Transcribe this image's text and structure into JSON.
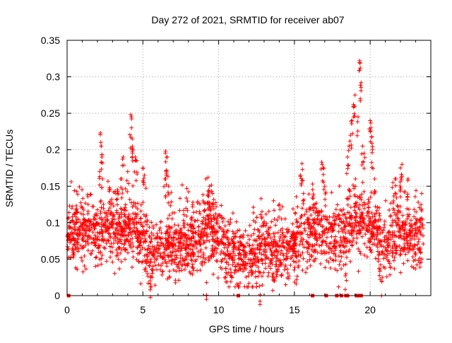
{
  "chart_data": {
    "type": "scatter",
    "title": "Day 272 of 2021, SRMTID for receiver ab07",
    "xlabel": "GPS time / hours",
    "ylabel": "SRMTID / TECUs",
    "xlim": [
      0,
      24
    ],
    "ylim": [
      0,
      0.35
    ],
    "grid": true,
    "x_ticks": [
      0,
      5,
      10,
      15,
      20
    ],
    "x_tick_labels": [
      "0",
      "5",
      "10",
      "15",
      "20"
    ],
    "y_ticks": [
      0,
      0.05,
      0.1,
      0.15,
      0.2,
      0.25,
      0.3,
      0.35
    ],
    "y_tick_labels": [
      "0",
      "0.05",
      "0.1",
      "0.15",
      "0.2",
      "0.25",
      "0.3",
      "0.35"
    ],
    "marker": "plus",
    "series": [
      {
        "name": "SRMTID",
        "color": "#ff0000",
        "trend": [
          [
            0.0,
            0.08
          ],
          [
            0.5,
            0.085
          ],
          [
            1.0,
            0.09
          ],
          [
            1.5,
            0.085
          ],
          [
            2.0,
            0.08
          ],
          [
            2.5,
            0.095
          ],
          [
            3.0,
            0.09
          ],
          [
            3.5,
            0.085
          ],
          [
            4.0,
            0.1
          ],
          [
            4.5,
            0.09
          ],
          [
            5.0,
            0.075
          ],
          [
            5.5,
            0.06
          ],
          [
            6.0,
            0.06
          ],
          [
            6.5,
            0.07
          ],
          [
            7.0,
            0.06
          ],
          [
            7.5,
            0.065
          ],
          [
            8.0,
            0.065
          ],
          [
            8.5,
            0.07
          ],
          [
            9.0,
            0.085
          ],
          [
            9.5,
            0.095
          ],
          [
            10.0,
            0.07
          ],
          [
            10.5,
            0.06
          ],
          [
            11.0,
            0.055
          ],
          [
            11.5,
            0.055
          ],
          [
            12.0,
            0.05
          ],
          [
            12.5,
            0.055
          ],
          [
            13.0,
            0.06
          ],
          [
            13.5,
            0.065
          ],
          [
            14.0,
            0.06
          ],
          [
            14.5,
            0.06
          ],
          [
            15.0,
            0.07
          ],
          [
            15.5,
            0.08
          ],
          [
            16.0,
            0.085
          ],
          [
            16.5,
            0.085
          ],
          [
            17.0,
            0.085
          ],
          [
            17.5,
            0.085
          ],
          [
            18.0,
            0.075
          ],
          [
            18.5,
            0.09
          ],
          [
            19.0,
            0.1
          ],
          [
            19.5,
            0.1
          ],
          [
            20.0,
            0.095
          ],
          [
            20.5,
            0.075
          ],
          [
            21.0,
            0.07
          ],
          [
            21.5,
            0.08
          ],
          [
            22.0,
            0.09
          ],
          [
            22.5,
            0.085
          ],
          [
            23.0,
            0.075
          ],
          [
            23.5,
            0.08
          ],
          [
            24.0,
            0.085
          ]
        ],
        "spikes": [
          [
            2.2,
            0.223
          ],
          [
            2.25,
            0.205
          ],
          [
            2.3,
            0.19
          ],
          [
            2.15,
            0.17
          ],
          [
            2.8,
            0.148
          ],
          [
            3.3,
            0.14
          ],
          [
            3.6,
            0.16
          ],
          [
            3.7,
            0.19
          ],
          [
            4.0,
            0.17
          ],
          [
            4.2,
            0.248
          ],
          [
            4.25,
            0.23
          ],
          [
            4.3,
            0.215
          ],
          [
            4.35,
            0.2
          ],
          [
            4.5,
            0.19
          ],
          [
            4.6,
            0.185
          ],
          [
            5.0,
            0.175
          ],
          [
            5.1,
            0.165
          ],
          [
            6.5,
            0.198
          ],
          [
            6.6,
            0.19
          ],
          [
            6.55,
            0.172
          ],
          [
            6.45,
            0.16
          ],
          [
            6.7,
            0.15
          ],
          [
            7.9,
            0.147
          ],
          [
            8.3,
            0.128
          ],
          [
            9.3,
            0.162
          ],
          [
            9.4,
            0.15
          ],
          [
            9.6,
            0.14
          ],
          [
            12.8,
            0.133
          ],
          [
            14.0,
            0.125
          ],
          [
            15.5,
            0.181
          ],
          [
            15.4,
            0.165
          ],
          [
            15.6,
            0.14
          ],
          [
            16.2,
            0.153
          ],
          [
            16.8,
            0.183
          ],
          [
            16.9,
            0.175
          ],
          [
            17.0,
            0.15
          ],
          [
            18.5,
            0.19
          ],
          [
            18.6,
            0.205
          ],
          [
            18.7,
            0.22
          ],
          [
            18.8,
            0.24
          ],
          [
            18.9,
            0.262
          ],
          [
            19.0,
            0.275
          ],
          [
            19.2,
            0.245
          ],
          [
            19.3,
            0.322
          ],
          [
            19.35,
            0.312
          ],
          [
            19.4,
            0.292
          ],
          [
            19.5,
            0.205
          ],
          [
            19.6,
            0.195
          ],
          [
            20.0,
            0.24
          ],
          [
            20.05,
            0.23
          ],
          [
            20.1,
            0.218
          ],
          [
            20.15,
            0.2
          ],
          [
            20.3,
            0.16
          ],
          [
            21.5,
            0.155
          ],
          [
            21.7,
            0.16
          ],
          [
            22.0,
            0.175
          ],
          [
            22.1,
            0.18
          ],
          [
            22.5,
            0.16
          ],
          [
            23.4,
            0.14
          ],
          [
            5.5,
            0.025
          ],
          [
            9.2,
            0.018
          ],
          [
            12.7,
            0.013
          ],
          [
            13.6,
            0.025
          ],
          [
            18.4,
            0.03
          ],
          [
            20.8,
            0.025
          ]
        ]
      }
    ],
    "zero_markers": [
      0.1,
      11.3,
      16.2,
      17.1,
      17.8,
      18.1,
      18.4,
      18.5,
      19.1,
      19.2,
      19.4
    ]
  }
}
